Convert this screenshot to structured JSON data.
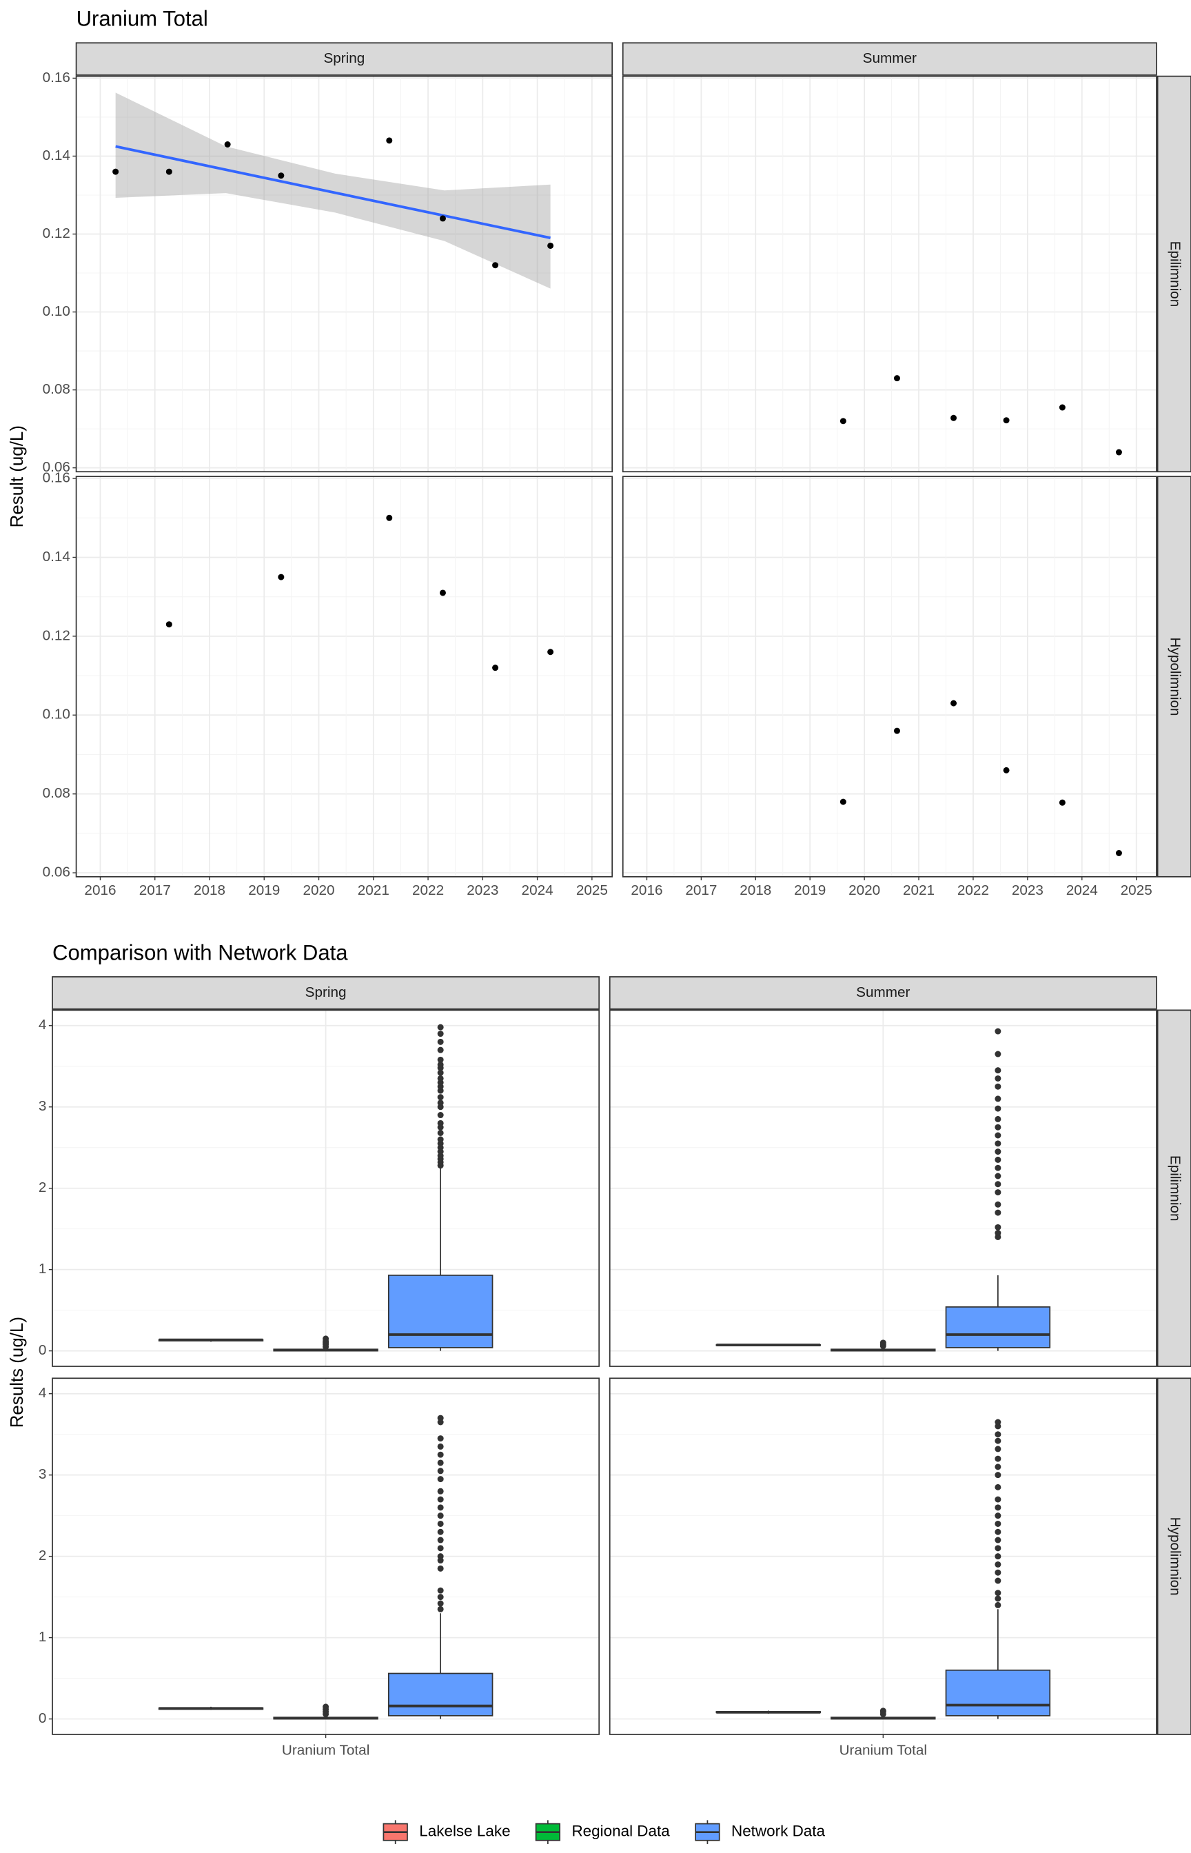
{
  "chart_data": [
    {
      "type": "scatter",
      "title": "Uranium Total",
      "y_label": "Result (ug/L)",
      "columns": [
        "Spring",
        "Summer"
      ],
      "rows": [
        "Epilimnion",
        "Hypolimnion"
      ],
      "xlim": [
        2015.56,
        2025.37
      ],
      "xticks": [
        2016,
        2017,
        2018,
        2019,
        2020,
        2021,
        2022,
        2023,
        2024,
        2025
      ],
      "ylim": [
        0.059,
        0.1605
      ],
      "yticks": [
        0.06,
        0.08,
        {
          "value": 0.1,
          "label": "0.10"
        },
        0.12,
        0.14,
        0.16
      ],
      "grid": true,
      "color": "#000000",
      "fit_color": "#3366ff",
      "panels": [
        {
          "x": [
            2016.28,
            2017.26,
            2018.33,
            2019.31,
            2021.29,
            2022.27,
            2023.23,
            2024.24
          ],
          "values": [
            0.136,
            0.136,
            0.143,
            0.135,
            0.144,
            0.124,
            0.112,
            0.117
          ],
          "fit": {
            "x": [
              2016.28,
              2018.3,
              2020.3,
              2022.3,
              2024.24
            ],
            "values": [
              0.1425,
              0.1365,
              0.1306,
              0.1247,
              0.119
            ],
            "lower": [
              0.1293,
              0.1305,
              0.1255,
              0.1182,
              0.106
            ],
            "upper": [
              0.1563,
              0.1425,
              0.1355,
              0.1312,
              0.1327
            ]
          }
        },
        {
          "x": [
            2019.61,
            2020.6,
            2021.64,
            2022.61,
            2023.64,
            2024.68
          ],
          "values": [
            0.072,
            0.083,
            0.0728,
            0.0722,
            0.0755,
            0.064
          ]
        },
        {
          "x": [
            2017.26,
            2019.31,
            2021.29,
            2022.27,
            2023.23,
            2024.24
          ],
          "values": [
            0.123,
            0.135,
            0.15,
            0.131,
            0.112,
            0.116
          ]
        },
        {
          "x": [
            2019.61,
            2020.6,
            2021.64,
            2022.61,
            2023.64,
            2024.68
          ],
          "values": [
            0.078,
            0.096,
            0.103,
            0.086,
            0.0778,
            0.065
          ]
        }
      ]
    },
    {
      "type": "box",
      "title": "Comparison with Network Data",
      "y_label": "Results (ug/L)",
      "columns": [
        "Spring",
        "Summer"
      ],
      "rows": [
        "Epilimnion",
        "Hypolimnion"
      ],
      "categories": [
        "Uranium Total"
      ],
      "ylim": [
        -0.19,
        4.19
      ],
      "yticks": [
        0,
        1,
        2,
        3,
        4
      ],
      "grid": true,
      "series": [
        {
          "name": "Lakelse Lake",
          "color": "#f8766d",
          "panels": [
            {
              "min": 0.112,
              "q1": 0.124,
              "median": 0.135,
              "q3": 0.1375,
              "max": 0.144,
              "outliers": []
            },
            {
              "min": 0.064,
              "q1": 0.072,
              "median": 0.0725,
              "q3": 0.074,
              "max": 0.083,
              "outliers": []
            },
            {
              "min": 0.112,
              "q1": 0.12,
              "median": 0.13,
              "q3": 0.135,
              "max": 0.15,
              "outliers": []
            },
            {
              "min": 0.065,
              "q1": 0.078,
              "median": 0.082,
              "q3": 0.09,
              "max": 0.103,
              "outliers": []
            }
          ]
        },
        {
          "name": "Regional Data",
          "color": "#00ba38",
          "panels": [
            {
              "min": 0,
              "q1": 0,
              "median": 0.01,
              "q3": 0.02,
              "max": 0.04,
              "outliers": [
                0.05,
                0.08,
                0.1,
                0.12,
                0.15
              ]
            },
            {
              "min": 0,
              "q1": 0,
              "median": 0.01,
              "q3": 0.02,
              "max": 0.04,
              "outliers": [
                0.06,
                0.08,
                0.1
              ]
            },
            {
              "min": 0,
              "q1": 0,
              "median": 0.01,
              "q3": 0.02,
              "max": 0.04,
              "outliers": [
                0.06,
                0.09,
                0.12,
                0.15
              ]
            },
            {
              "min": 0,
              "q1": 0,
              "median": 0.01,
              "q3": 0.02,
              "max": 0.04,
              "outliers": [
                0.06,
                0.09,
                0.1
              ]
            }
          ]
        },
        {
          "name": "Network Data",
          "color": "#619cff",
          "panels": [
            {
              "min": 0,
              "q1": 0.04,
              "median": 0.2,
              "q3": 0.93,
              "max": 2.25,
              "outliers": [
                2.28,
                2.32,
                2.36,
                2.4,
                2.45,
                2.5,
                2.55,
                2.6,
                2.68,
                2.75,
                2.8,
                2.9,
                3.0,
                3.05,
                3.12,
                3.2,
                3.25,
                3.3,
                3.35,
                3.42,
                3.48,
                3.52,
                3.58,
                3.7,
                3.8,
                3.9,
                3.98
              ]
            },
            {
              "min": 0,
              "q1": 0.04,
              "median": 0.2,
              "q3": 0.54,
              "max": 0.93,
              "outliers": [
                1.4,
                1.45,
                1.52,
                1.7,
                1.8,
                1.95,
                2.05,
                2.15,
                2.25,
                2.35,
                2.45,
                2.55,
                2.65,
                2.75,
                2.85,
                2.98,
                3.1,
                3.25,
                3.35,
                3.45,
                3.65,
                3.93
              ]
            },
            {
              "min": 0,
              "q1": 0.04,
              "median": 0.16,
              "q3": 0.56,
              "max": 1.3,
              "outliers": [
                1.35,
                1.42,
                1.5,
                1.58,
                1.85,
                1.95,
                2.0,
                2.1,
                2.2,
                2.3,
                2.4,
                2.5,
                2.6,
                2.7,
                2.8,
                2.95,
                3.05,
                3.15,
                3.25,
                3.35,
                3.45,
                3.65,
                3.7
              ]
            },
            {
              "min": 0,
              "q1": 0.04,
              "median": 0.17,
              "q3": 0.6,
              "max": 1.35,
              "outliers": [
                1.4,
                1.48,
                1.55,
                1.7,
                1.8,
                1.9,
                2.0,
                2.1,
                2.2,
                2.3,
                2.4,
                2.5,
                2.6,
                2.7,
                2.85,
                3.0,
                3.1,
                3.2,
                3.32,
                3.42,
                3.5,
                3.6,
                3.65
              ]
            }
          ]
        }
      ]
    }
  ]
}
